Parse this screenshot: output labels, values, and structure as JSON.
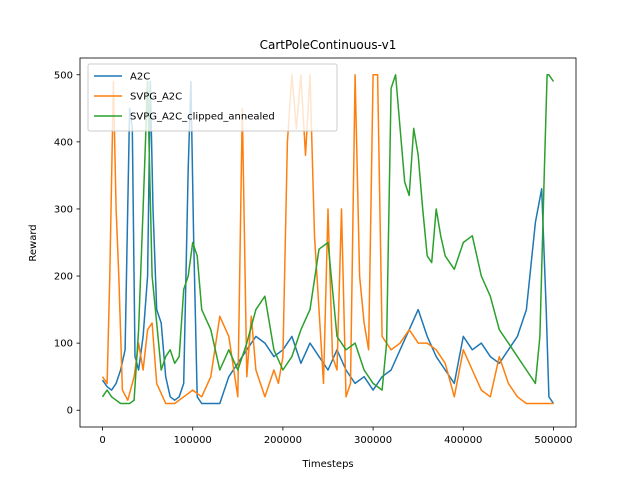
{
  "chart_data": {
    "type": "line",
    "title": "CartPoleContinuous-v1",
    "xlabel": "Timesteps",
    "ylabel": "Reward",
    "xlim": [
      -25000,
      525000
    ],
    "ylim": [
      -25,
      525
    ],
    "xticks": [
      0,
      100000,
      200000,
      300000,
      400000,
      500000
    ],
    "yticks": [
      0,
      100,
      200,
      300,
      400,
      500
    ],
    "legend": "top-left",
    "grid": false,
    "series": [
      {
        "name": "A2C",
        "color": "#1f77b4",
        "x": [
          0,
          5000,
          10000,
          15000,
          20000,
          25000,
          30000,
          33000,
          36000,
          40000,
          45000,
          50000,
          53000,
          56000,
          60000,
          65000,
          70000,
          75000,
          80000,
          85000,
          90000,
          95000,
          98000,
          101000,
          105000,
          110000,
          120000,
          130000,
          140000,
          150000,
          160000,
          170000,
          180000,
          190000,
          200000,
          210000,
          220000,
          230000,
          240000,
          250000,
          260000,
          270000,
          280000,
          290000,
          300000,
          310000,
          320000,
          330000,
          340000,
          350000,
          360000,
          370000,
          380000,
          390000,
          400000,
          410000,
          420000,
          430000,
          440000,
          450000,
          460000,
          470000,
          480000,
          487000,
          492000,
          495000,
          500000
        ],
        "y": [
          45,
          35,
          30,
          40,
          60,
          90,
          450,
          420,
          80,
          60,
          110,
          200,
          490,
          300,
          150,
          130,
          50,
          20,
          15,
          20,
          40,
          360,
          490,
          260,
          20,
          10,
          10,
          10,
          50,
          70,
          90,
          110,
          100,
          80,
          90,
          110,
          70,
          100,
          80,
          60,
          90,
          60,
          40,
          50,
          30,
          50,
          60,
          90,
          120,
          150,
          110,
          80,
          60,
          40,
          110,
          90,
          100,
          80,
          70,
          90,
          110,
          150,
          280,
          330,
          150,
          20,
          10
        ]
      },
      {
        "name": "SVPG_A2C",
        "color": "#ff7f0e",
        "x": [
          0,
          5000,
          8000,
          12000,
          15000,
          18000,
          22000,
          28000,
          35000,
          40000,
          45000,
          50000,
          55000,
          60000,
          70000,
          80000,
          90000,
          100000,
          110000,
          120000,
          130000,
          140000,
          150000,
          155000,
          160000,
          165000,
          170000,
          180000,
          190000,
          195000,
          200000,
          205000,
          210000,
          215000,
          220000,
          225000,
          230000,
          235000,
          240000,
          245000,
          250000,
          255000,
          260000,
          265000,
          270000,
          275000,
          280000,
          285000,
          290000,
          295000,
          300000,
          305000,
          310000,
          320000,
          330000,
          340000,
          350000,
          360000,
          370000,
          380000,
          390000,
          400000,
          410000,
          420000,
          430000,
          440000,
          450000,
          460000,
          470000,
          480000,
          490000,
          500000
        ],
        "y": [
          50,
          40,
          200,
          490,
          300,
          200,
          30,
          15,
          50,
          100,
          60,
          120,
          130,
          40,
          10,
          10,
          20,
          30,
          20,
          50,
          140,
          110,
          20,
          450,
          50,
          140,
          60,
          20,
          60,
          40,
          80,
          400,
          500,
          420,
          500,
          380,
          500,
          260,
          150,
          40,
          300,
          80,
          60,
          300,
          20,
          40,
          500,
          200,
          130,
          90,
          500,
          500,
          110,
          90,
          100,
          120,
          100,
          100,
          90,
          70,
          20,
          90,
          60,
          30,
          20,
          80,
          40,
          20,
          10,
          10,
          10,
          10
        ]
      },
      {
        "name": "SVPG_A2C_clipped_annealed",
        "color": "#2ca02c",
        "x": [
          0,
          5000,
          10000,
          20000,
          30000,
          35000,
          40000,
          45000,
          50000,
          55000,
          60000,
          65000,
          70000,
          75000,
          80000,
          85000,
          90000,
          95000,
          100000,
          105000,
          110000,
          120000,
          130000,
          140000,
          150000,
          160000,
          170000,
          180000,
          190000,
          200000,
          210000,
          220000,
          230000,
          240000,
          250000,
          260000,
          270000,
          280000,
          290000,
          300000,
          310000,
          315000,
          320000,
          325000,
          330000,
          335000,
          340000,
          345000,
          350000,
          355000,
          360000,
          365000,
          370000,
          375000,
          380000,
          390000,
          400000,
          410000,
          420000,
          430000,
          440000,
          450000,
          460000,
          470000,
          480000,
          485000,
          490000,
          493000,
          495000,
          500000
        ],
        "y": [
          20,
          30,
          20,
          10,
          10,
          15,
          120,
          300,
          490,
          200,
          130,
          60,
          80,
          90,
          70,
          80,
          180,
          200,
          250,
          230,
          150,
          120,
          60,
          90,
          60,
          100,
          150,
          170,
          90,
          60,
          80,
          120,
          150,
          240,
          250,
          110,
          90,
          100,
          60,
          40,
          30,
          100,
          480,
          500,
          420,
          340,
          320,
          420,
          380,
          300,
          230,
          220,
          300,
          260,
          230,
          210,
          250,
          260,
          200,
          170,
          120,
          100,
          80,
          60,
          40,
          110,
          360,
          500,
          500,
          490
        ]
      }
    ]
  }
}
